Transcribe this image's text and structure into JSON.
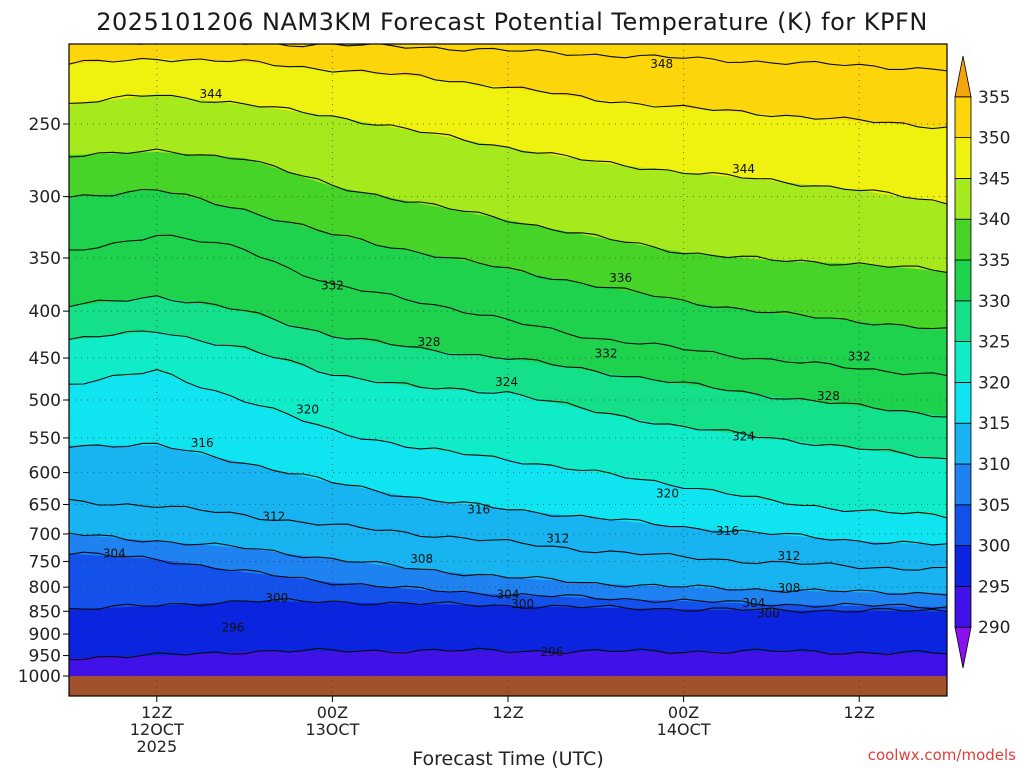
{
  "chart_data": {
    "type": "heatmap",
    "title": "2025101206 NAM3KM Forecast Potential Temperature (K) for KPFN",
    "xlabel": "Forecast Time (UTC)",
    "ylabel": "",
    "credit": "coolwx.com/models",
    "x_hours_range": [
      0,
      60
    ],
    "x_ticks": [
      {
        "hour": 6,
        "lines": [
          "12Z",
          "12OCT",
          "2025"
        ]
      },
      {
        "hour": 18,
        "lines": [
          "00Z",
          "13OCT"
        ]
      },
      {
        "hour": 30,
        "lines": [
          "12Z"
        ]
      },
      {
        "hour": 42,
        "lines": [
          "00Z",
          "14OCT"
        ]
      },
      {
        "hour": 54,
        "lines": [
          "12Z"
        ]
      }
    ],
    "y_pressure_range": [
      1020,
      200
    ],
    "y_ticks": [
      250,
      300,
      350,
      400,
      450,
      500,
      550,
      600,
      650,
      700,
      750,
      800,
      850,
      900,
      950,
      1000
    ],
    "colorbar": {
      "levels": [
        290,
        295,
        300,
        305,
        310,
        315,
        320,
        325,
        330,
        335,
        340,
        345,
        350,
        355
      ],
      "colors": [
        "#8a12f0",
        "#4210e8",
        "#0b24e0",
        "#1450ea",
        "#1e82f0",
        "#18b4f2",
        "#10e4f0",
        "#10ecc8",
        "#14e08a",
        "#1ed24e",
        "#46d428",
        "#a6ea1e",
        "#eef20e",
        "#fcd60a",
        "#f4a40c"
      ]
    },
    "isentropes": [
      {
        "value": 296,
        "points": [
          [
            0,
            955
          ],
          [
            6,
            950
          ],
          [
            12,
            940
          ],
          [
            24,
            938
          ],
          [
            36,
            940
          ],
          [
            48,
            940
          ],
          [
            60,
            945
          ]
        ]
      },
      {
        "value": 300,
        "points": [
          [
            0,
            845
          ],
          [
            6,
            838
          ],
          [
            12,
            828
          ],
          [
            18,
            830
          ],
          [
            24,
            834
          ],
          [
            30,
            838
          ],
          [
            36,
            842
          ],
          [
            42,
            845
          ],
          [
            48,
            848
          ],
          [
            54,
            848
          ],
          [
            60,
            850
          ]
        ]
      },
      {
        "value": 304,
        "points": [
          [
            0,
            735
          ],
          [
            6,
            745
          ],
          [
            12,
            770
          ],
          [
            18,
            790
          ],
          [
            24,
            805
          ],
          [
            30,
            815
          ],
          [
            36,
            822
          ],
          [
            42,
            828
          ],
          [
            48,
            835
          ],
          [
            54,
            838
          ],
          [
            60,
            840
          ]
        ]
      },
      {
        "value": 308,
        "points": [
          [
            0,
            700
          ],
          [
            6,
            712
          ],
          [
            12,
            725
          ],
          [
            18,
            745
          ],
          [
            24,
            765
          ],
          [
            30,
            780
          ],
          [
            36,
            792
          ],
          [
            42,
            800
          ],
          [
            48,
            805
          ],
          [
            54,
            810
          ],
          [
            60,
            812
          ]
        ]
      },
      {
        "value": 312,
        "points": [
          [
            0,
            645
          ],
          [
            6,
            652
          ],
          [
            12,
            668
          ],
          [
            18,
            685
          ],
          [
            24,
            700
          ],
          [
            30,
            715
          ],
          [
            36,
            730
          ],
          [
            42,
            742
          ],
          [
            48,
            752
          ],
          [
            54,
            760
          ],
          [
            60,
            765
          ]
        ]
      },
      {
        "value": 316,
        "points": [
          [
            0,
            560
          ],
          [
            6,
            560
          ],
          [
            12,
            585
          ],
          [
            18,
            615
          ],
          [
            24,
            640
          ],
          [
            30,
            658
          ],
          [
            36,
            672
          ],
          [
            42,
            688
          ],
          [
            48,
            700
          ],
          [
            54,
            712
          ],
          [
            60,
            720
          ]
        ]
      },
      {
        "value": 320,
        "points": [
          [
            0,
            480
          ],
          [
            6,
            465
          ],
          [
            12,
            500
          ],
          [
            18,
            540
          ],
          [
            24,
            565
          ],
          [
            30,
            580
          ],
          [
            36,
            600
          ],
          [
            42,
            620
          ],
          [
            48,
            645
          ],
          [
            54,
            660
          ],
          [
            60,
            670
          ]
        ]
      },
      {
        "value": 324,
        "points": [
          [
            0,
            430
          ],
          [
            6,
            420
          ],
          [
            12,
            440
          ],
          [
            18,
            468
          ],
          [
            24,
            485
          ],
          [
            30,
            490
          ],
          [
            36,
            515
          ],
          [
            42,
            535
          ],
          [
            48,
            550
          ],
          [
            54,
            565
          ],
          [
            60,
            580
          ]
        ]
      },
      {
        "value": 328,
        "points": [
          [
            0,
            395
          ],
          [
            6,
            385
          ],
          [
            12,
            400
          ],
          [
            18,
            425
          ],
          [
            24,
            440
          ],
          [
            30,
            450
          ],
          [
            36,
            465
          ],
          [
            42,
            480
          ],
          [
            48,
            495
          ],
          [
            54,
            508
          ],
          [
            60,
            520
          ]
        ]
      },
      {
        "value": 332,
        "points": [
          [
            0,
            345
          ],
          [
            6,
            330
          ],
          [
            12,
            342
          ],
          [
            18,
            375
          ],
          [
            24,
            390
          ],
          [
            30,
            410
          ],
          [
            36,
            428
          ],
          [
            42,
            440
          ],
          [
            48,
            452
          ],
          [
            54,
            462
          ],
          [
            60,
            470
          ]
        ]
      },
      {
        "value": 336,
        "points": [
          [
            0,
            300
          ],
          [
            6,
            295
          ],
          [
            12,
            310
          ],
          [
            18,
            330
          ],
          [
            24,
            345
          ],
          [
            30,
            360
          ],
          [
            36,
            375
          ],
          [
            42,
            390
          ],
          [
            48,
            402
          ],
          [
            54,
            410
          ],
          [
            60,
            420
          ]
        ]
      },
      {
        "value": 340,
        "points": [
          [
            0,
            270
          ],
          [
            6,
            268
          ],
          [
            12,
            272
          ],
          [
            18,
            292
          ],
          [
            24,
            305
          ],
          [
            30,
            318
          ],
          [
            36,
            332
          ],
          [
            42,
            345
          ],
          [
            48,
            352
          ],
          [
            54,
            355
          ],
          [
            60,
            362
          ]
        ]
      },
      {
        "value": 344,
        "points": [
          [
            0,
            238
          ],
          [
            6,
            232
          ],
          [
            12,
            238
          ],
          [
            18,
            245
          ],
          [
            24,
            255
          ],
          [
            30,
            265
          ],
          [
            36,
            275
          ],
          [
            42,
            282
          ],
          [
            48,
            288
          ],
          [
            54,
            295
          ],
          [
            60,
            305
          ]
        ]
      },
      {
        "value": 348,
        "points": [
          [
            0,
            215
          ],
          [
            6,
            212
          ],
          [
            12,
            214
          ],
          [
            18,
            218
          ],
          [
            24,
            222
          ],
          [
            30,
            228
          ],
          [
            36,
            235
          ],
          [
            42,
            240
          ],
          [
            48,
            244
          ],
          [
            54,
            248
          ],
          [
            60,
            252
          ]
        ]
      },
      {
        "value": 352,
        "points": [
          [
            0,
            203
          ],
          [
            12,
            204
          ],
          [
            24,
            206
          ],
          [
            36,
            210
          ],
          [
            48,
            214
          ],
          [
            60,
            218
          ]
        ]
      }
    ],
    "contour_labels": [
      {
        "value": "348",
        "hour": 40.5,
        "p": 215
      },
      {
        "value": "344",
        "hour": 9.7,
        "p": 232
      },
      {
        "value": "344",
        "hour": 46.1,
        "p": 280
      },
      {
        "value": "336",
        "hour": 37.7,
        "p": 368
      },
      {
        "value": "332",
        "hour": 18,
        "p": 375
      },
      {
        "value": "332",
        "hour": 36.7,
        "p": 445
      },
      {
        "value": "332",
        "hour": 54,
        "p": 448
      },
      {
        "value": "328",
        "hour": 24.6,
        "p": 432
      },
      {
        "value": "328",
        "hour": 51.9,
        "p": 495
      },
      {
        "value": "324",
        "hour": 29.9,
        "p": 478
      },
      {
        "value": "324",
        "hour": 46.1,
        "p": 548
      },
      {
        "value": "320",
        "hour": 16.3,
        "p": 512
      },
      {
        "value": "320",
        "hour": 40.9,
        "p": 632
      },
      {
        "value": "316",
        "hour": 9.1,
        "p": 557
      },
      {
        "value": "316",
        "hour": 28.0,
        "p": 658
      },
      {
        "value": "316",
        "hour": 45.0,
        "p": 695
      },
      {
        "value": "312",
        "hour": 14.0,
        "p": 670
      },
      {
        "value": "312",
        "hour": 33.4,
        "p": 708
      },
      {
        "value": "312",
        "hour": 49.2,
        "p": 740
      },
      {
        "value": "308",
        "hour": 24.1,
        "p": 745
      },
      {
        "value": "308",
        "hour": 49.2,
        "p": 802
      },
      {
        "value": "304",
        "hour": 3.1,
        "p": 735
      },
      {
        "value": "304",
        "hour": 30.0,
        "p": 815
      },
      {
        "value": "304",
        "hour": 46.8,
        "p": 832
      },
      {
        "value": "300",
        "hour": 14.2,
        "p": 822
      },
      {
        "value": "300",
        "hour": 31.0,
        "p": 835
      },
      {
        "value": "300",
        "hour": 47.8,
        "p": 855
      },
      {
        "value": "296",
        "hour": 11.2,
        "p": 885
      },
      {
        "value": "296",
        "hour": 33.0,
        "p": 942
      }
    ],
    "ground_pressure": 1000
  }
}
